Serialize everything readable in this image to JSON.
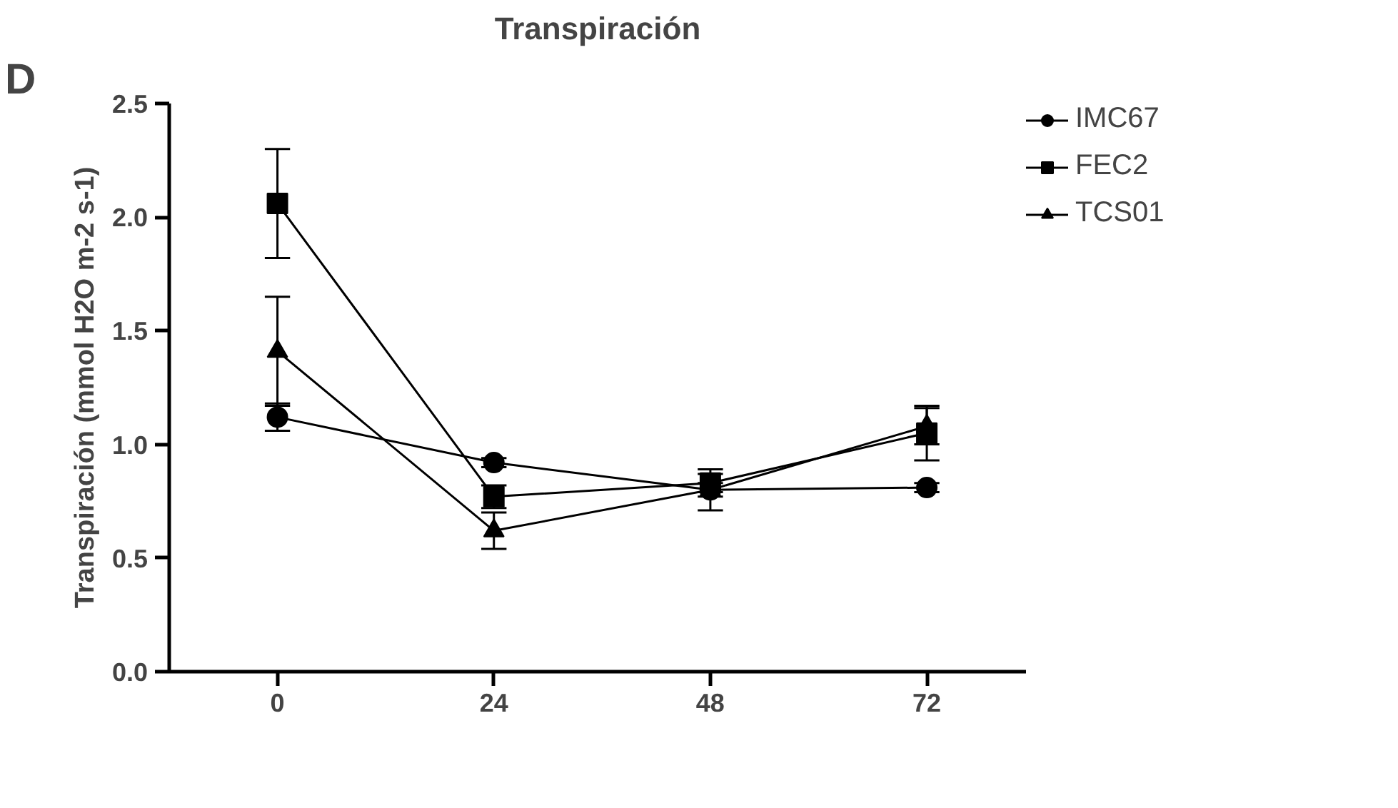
{
  "chart_data": {
    "type": "line",
    "title": "Transpiración",
    "ylabel": "Transpiración (mmol H2O m-2 s-1)",
    "annotations": [
      "D"
    ],
    "x": [
      0,
      24,
      48,
      72
    ],
    "xlim": [
      -12,
      83
    ],
    "xticks": [
      0,
      24,
      48,
      72
    ],
    "ylim": [
      0,
      2.5
    ],
    "yticks": [
      {
        "value": 0,
        "label": "0.0"
      },
      {
        "value": 0.5,
        "label": "0.5"
      },
      {
        "value": 1,
        "label": "1.0"
      },
      {
        "value": 1.5,
        "label": "1.5"
      },
      {
        "value": 2,
        "label": "2.0"
      },
      {
        "value": 2.5,
        "label": "2.5"
      }
    ],
    "grid": false,
    "legend": "right",
    "line_style": "solid",
    "series": [
      {
        "name": "IMC67",
        "color": "#000000",
        "marker": "circle",
        "values": [
          1.12,
          0.92,
          0.8,
          0.81
        ],
        "errors": [
          0.06,
          0.02,
          0.03,
          0.02
        ]
      },
      {
        "name": "FEC2",
        "color": "#000000",
        "marker": "square",
        "values": [
          2.06,
          0.77,
          0.83,
          1.05
        ],
        "errors": [
          0.24,
          0.05,
          0.04,
          0.12
        ]
      },
      {
        "name": "TCS01",
        "color": "#000000",
        "marker": "triangle",
        "values": [
          1.41,
          0.62,
          0.8,
          1.08
        ],
        "errors": [
          0.24,
          0.08,
          0.09,
          0.08
        ]
      }
    ]
  }
}
